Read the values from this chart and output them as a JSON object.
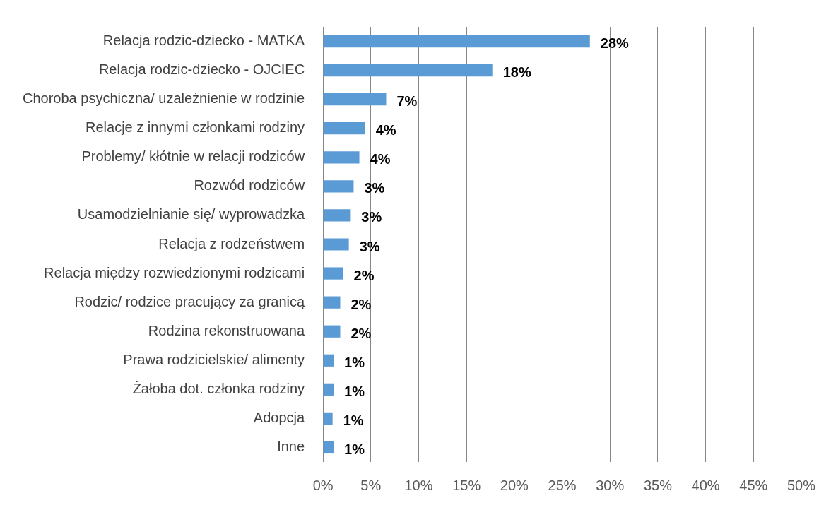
{
  "chart_data": {
    "type": "bar",
    "orientation": "horizontal",
    "categories": [
      "Relacja rodzic-dziecko - MATKA",
      "Relacja rodzic-dziecko - OJCIEC",
      "Choroba psychiczna/ uzależnienie w rodzinie",
      "Relacje z innymi członkami rodziny",
      "Problemy/ kłótnie w relacji rodziców",
      "Rozwód rodziców",
      "Usamodzielnianie się/ wyprowadzka",
      "Relacja z rodzeństwem",
      "Relacja między rozwiedzionymi rodzicami",
      "Rodzic/ rodzice pracujący za granicą",
      "Rodzina rekonstruowana",
      "Prawa rodzicielskie/ alimenty",
      "Żałoba dot. członka rodziny",
      "Adopcja",
      "Inne"
    ],
    "values": [
      27.9,
      17.7,
      6.6,
      4.4,
      3.8,
      3.2,
      2.9,
      2.7,
      2.1,
      1.8,
      1.8,
      1.1,
      1.1,
      1.0,
      1.1
    ],
    "value_labels": [
      "28%",
      "18%",
      "7%",
      "4%",
      "4%",
      "3%",
      "3%",
      "3%",
      "2%",
      "2%",
      "2%",
      "1%",
      "1%",
      "1%",
      "1%"
    ],
    "color": "#5b9bd5",
    "xlim": [
      0,
      50
    ],
    "xticks": [
      {
        "value": 0,
        "label": "0%"
      },
      {
        "value": 5,
        "label": "5%"
      },
      {
        "value": 10,
        "label": "10%"
      },
      {
        "value": 15,
        "label": "15%"
      },
      {
        "value": 20,
        "label": "20%"
      },
      {
        "value": 25,
        "label": "25%"
      },
      {
        "value": 30,
        "label": "30%"
      },
      {
        "value": 35,
        "label": "35%"
      },
      {
        "value": 40,
        "label": "40%"
      },
      {
        "value": 45,
        "label": "45%"
      },
      {
        "value": 50,
        "label": "50%"
      }
    ],
    "grid": "x"
  }
}
